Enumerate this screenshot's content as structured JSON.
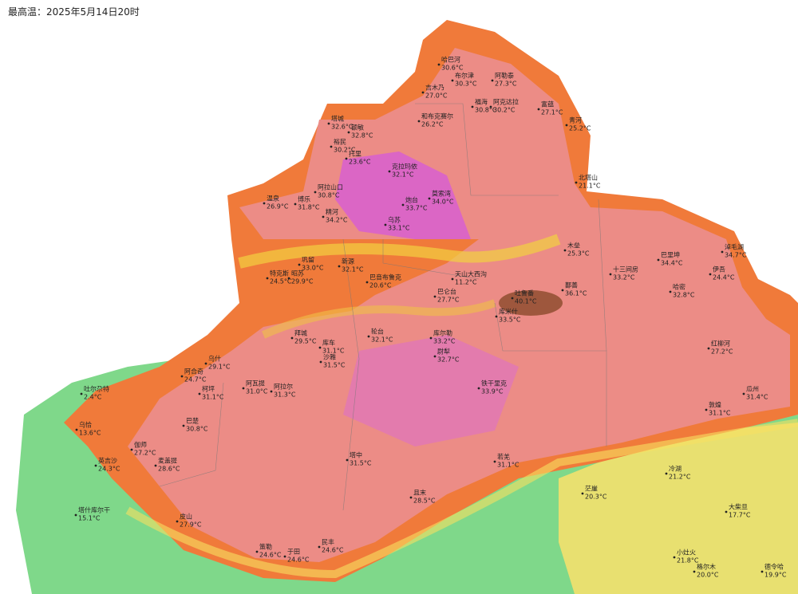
{
  "header": {
    "title": "最高温：2025年5月14日20时"
  },
  "stations": [
    {
      "name": "哈巴河",
      "temp": "30.6°C"
    },
    {
      "name": "吉木乃",
      "temp": "27.0°C"
    },
    {
      "name": "布尔津",
      "temp": "30.3°C"
    },
    {
      "name": "阿勒泰",
      "temp": "27.3°C"
    },
    {
      "name": "福海",
      "temp": "30.8°C"
    },
    {
      "name": "阿克达拉",
      "temp": "30.2°C"
    },
    {
      "name": "富蕴",
      "temp": "27.1°C"
    },
    {
      "name": "青河",
      "temp": "25.2°C"
    },
    {
      "name": "和布克赛尔",
      "temp": "26.2°C"
    },
    {
      "name": "塔城",
      "temp": "32.6°C"
    },
    {
      "name": "额敏",
      "temp": "32.8°C"
    },
    {
      "name": "裕民",
      "temp": "30.2°C"
    },
    {
      "name": "托里",
      "temp": "23.6°C"
    },
    {
      "name": "克拉玛依",
      "temp": "32.1°C"
    },
    {
      "name": "北塔山",
      "temp": "21.1°C"
    },
    {
      "name": "阿拉山口",
      "temp": "30.8°C"
    },
    {
      "name": "温泉",
      "temp": "26.9°C"
    },
    {
      "name": "博乐",
      "temp": "31.8°C"
    },
    {
      "name": "精河",
      "temp": "34.2°C"
    },
    {
      "name": "炮台",
      "temp": "33.7°C"
    },
    {
      "name": "莫索湾",
      "temp": "34.0°C"
    },
    {
      "name": "乌苏",
      "temp": "33.1°C"
    },
    {
      "name": "木垒",
      "temp": "25.3°C"
    },
    {
      "name": "巴里坤",
      "temp": "34.4°C"
    },
    {
      "name": "淖毛湖",
      "temp": "34.7°C"
    },
    {
      "name": "伊吾",
      "temp": "24.4°C"
    },
    {
      "name": "十三间房",
      "temp": "33.2°C"
    },
    {
      "name": "哈密",
      "temp": "32.8°C"
    },
    {
      "name": "巩留",
      "temp": "33.0°C"
    },
    {
      "name": "新源",
      "temp": "32.1°C"
    },
    {
      "name": "特克斯",
      "temp": "24.5°C"
    },
    {
      "name": "昭苏",
      "temp": "29.9°C"
    },
    {
      "name": "巴音布鲁克",
      "temp": "20.6°C"
    },
    {
      "name": "天山大西沟",
      "temp": "11.2°C"
    },
    {
      "name": "巴仑台",
      "temp": "27.7°C"
    },
    {
      "name": "吐鲁番",
      "temp": "40.1°C"
    },
    {
      "name": "鄯善",
      "temp": "36.1°C"
    },
    {
      "name": "库米什",
      "temp": "33.5°C"
    },
    {
      "name": "库尔勒",
      "temp": "33.2°C"
    },
    {
      "name": "尉犁",
      "temp": "32.7°C"
    },
    {
      "name": "轮台",
      "temp": "32.1°C"
    },
    {
      "name": "拜城",
      "temp": "29.5°C"
    },
    {
      "name": "库车",
      "temp": "31.1°C"
    },
    {
      "name": "沙雅",
      "temp": "31.5°C"
    },
    {
      "name": "乌什",
      "temp": "29.1°C"
    },
    {
      "name": "阿合奇",
      "temp": "24.7°C"
    },
    {
      "name": "柯坪",
      "temp": "31.1°C"
    },
    {
      "name": "阿瓦提",
      "temp": "31.0°C"
    },
    {
      "name": "阿拉尔",
      "temp": "31.3°C"
    },
    {
      "name": "吐尔尕特",
      "temp": "2.4°C"
    },
    {
      "name": "铁干里克",
      "temp": "33.9°C"
    },
    {
      "name": "红柳河",
      "temp": "27.2°C"
    },
    {
      "name": "敦煌",
      "temp": "31.1°C"
    },
    {
      "name": "瓜州",
      "temp": "31.4°C"
    },
    {
      "name": "巴楚",
      "temp": "30.8°C"
    },
    {
      "name": "乌恰",
      "temp": "13.6°C"
    },
    {
      "name": "伽师",
      "temp": "27.2°C"
    },
    {
      "name": "英吉沙",
      "temp": "24.3°C"
    },
    {
      "name": "麦盖提",
      "temp": "28.6°C"
    },
    {
      "name": "塔什库尔干",
      "temp": "15.1°C"
    },
    {
      "name": "皮山",
      "temp": "27.9°C"
    },
    {
      "name": "策勒",
      "temp": "24.6°C"
    },
    {
      "name": "于田",
      "temp": "24.6°C"
    },
    {
      "name": "民丰",
      "temp": "24.6°C"
    },
    {
      "name": "塔中",
      "temp": "31.5°C"
    },
    {
      "name": "且末",
      "temp": "28.5°C"
    },
    {
      "name": "若羌",
      "temp": "31.1°C"
    },
    {
      "name": "冷湖",
      "temp": "21.2°C"
    },
    {
      "name": "茫崖",
      "temp": "20.3°C"
    },
    {
      "name": "大柴旦",
      "temp": "17.7°C"
    },
    {
      "name": "小灶火",
      "temp": "21.8°C"
    },
    {
      "name": "格尔木",
      "temp": "20.0°C"
    },
    {
      "name": "德令哈",
      "temp": "19.9°C"
    }
  ]
}
